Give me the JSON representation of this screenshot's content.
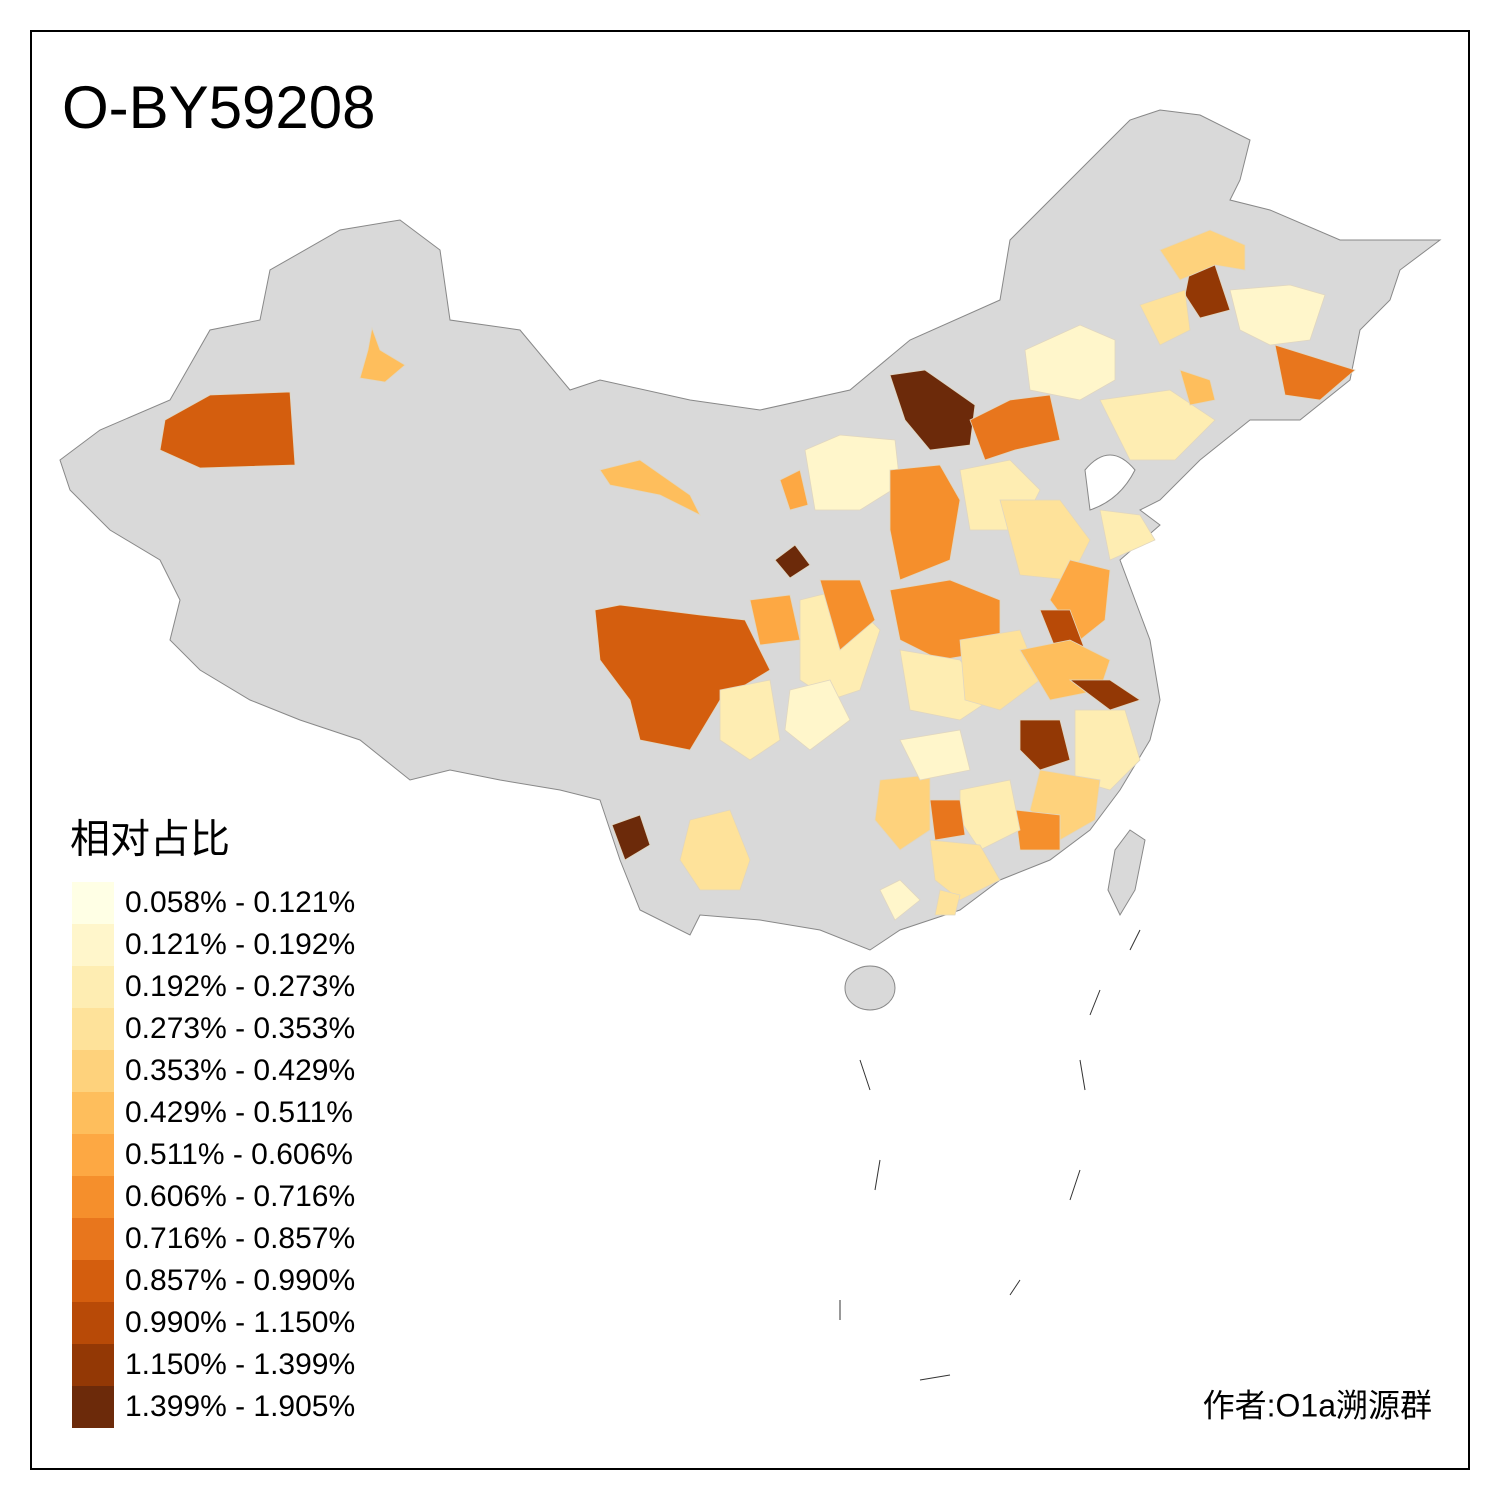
{
  "title": "O-BY59208",
  "legend": {
    "title": "相对占比",
    "items": [
      {
        "label": "0.058% - 0.121%",
        "color": "#FFFFE5"
      },
      {
        "label": "0.121% - 0.192%",
        "color": "#FFF6CB"
      },
      {
        "label": "0.192% - 0.273%",
        "color": "#FEEDB2"
      },
      {
        "label": "0.273% - 0.353%",
        "color": "#FEE29A"
      },
      {
        "label": "0.353% - 0.429%",
        "color": "#FED27C"
      },
      {
        "label": "0.429% - 0.511%",
        "color": "#FEBE5C"
      },
      {
        "label": "0.511% - 0.606%",
        "color": "#FDA843"
      },
      {
        "label": "0.606% - 0.716%",
        "color": "#F58F2C"
      },
      {
        "label": "0.716% - 0.857%",
        "color": "#E8761D"
      },
      {
        "label": "0.857% - 0.990%",
        "color": "#D45E0E"
      },
      {
        "label": "0.990% - 1.150%",
        "color": "#B84A07"
      },
      {
        "label": "1.150% - 1.399%",
        "color": "#933805"
      },
      {
        "label": "1.399% - 1.905%",
        "color": "#6C2A0A"
      }
    ]
  },
  "credit": "作者:O1a溯源群"
}
